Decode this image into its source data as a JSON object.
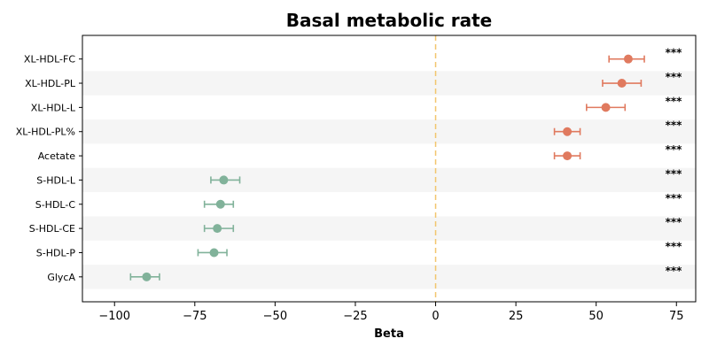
{
  "chart_data": {
    "type": "forest",
    "title": "Basal metabolic rate",
    "xlabel": "Beta",
    "xlim": [
      -110,
      81
    ],
    "xticks": [
      -100,
      -75,
      -50,
      -25,
      0,
      25,
      50,
      75
    ],
    "xtick_labels": [
      "−100",
      "−75",
      "−50",
      "−25",
      "0",
      "25",
      "50",
      "75"
    ],
    "reference_line": 0,
    "colors": {
      "positive": "#e07a5f",
      "negative": "#81b29a",
      "reference": "#f2c66d",
      "band": "#f5f5f5"
    },
    "rows": [
      {
        "label": "XL-HDL-FC",
        "beta": 60,
        "ci_low": 54,
        "ci_high": 65,
        "sig": "***"
      },
      {
        "label": "XL-HDL-PL",
        "beta": 58,
        "ci_low": 52,
        "ci_high": 64,
        "sig": "***"
      },
      {
        "label": "XL-HDL-L",
        "beta": 53,
        "ci_low": 47,
        "ci_high": 59,
        "sig": "***"
      },
      {
        "label": "XL-HDL-PL%",
        "beta": 41,
        "ci_low": 37,
        "ci_high": 45,
        "sig": "***"
      },
      {
        "label": "Acetate",
        "beta": 41,
        "ci_low": 37,
        "ci_high": 45,
        "sig": "***"
      },
      {
        "label": "S-HDL-L",
        "beta": -66,
        "ci_low": -70,
        "ci_high": -61,
        "sig": "***"
      },
      {
        "label": "S-HDL-C",
        "beta": -67,
        "ci_low": -72,
        "ci_high": -63,
        "sig": "***"
      },
      {
        "label": "S-HDL-CE",
        "beta": -68,
        "ci_low": -72,
        "ci_high": -63,
        "sig": "***"
      },
      {
        "label": "S-HDL-P",
        "beta": -69,
        "ci_low": -74,
        "ci_high": -65,
        "sig": "***"
      },
      {
        "label": "GlycA",
        "beta": -90,
        "ci_low": -95,
        "ci_high": -86,
        "sig": "***"
      }
    ]
  }
}
